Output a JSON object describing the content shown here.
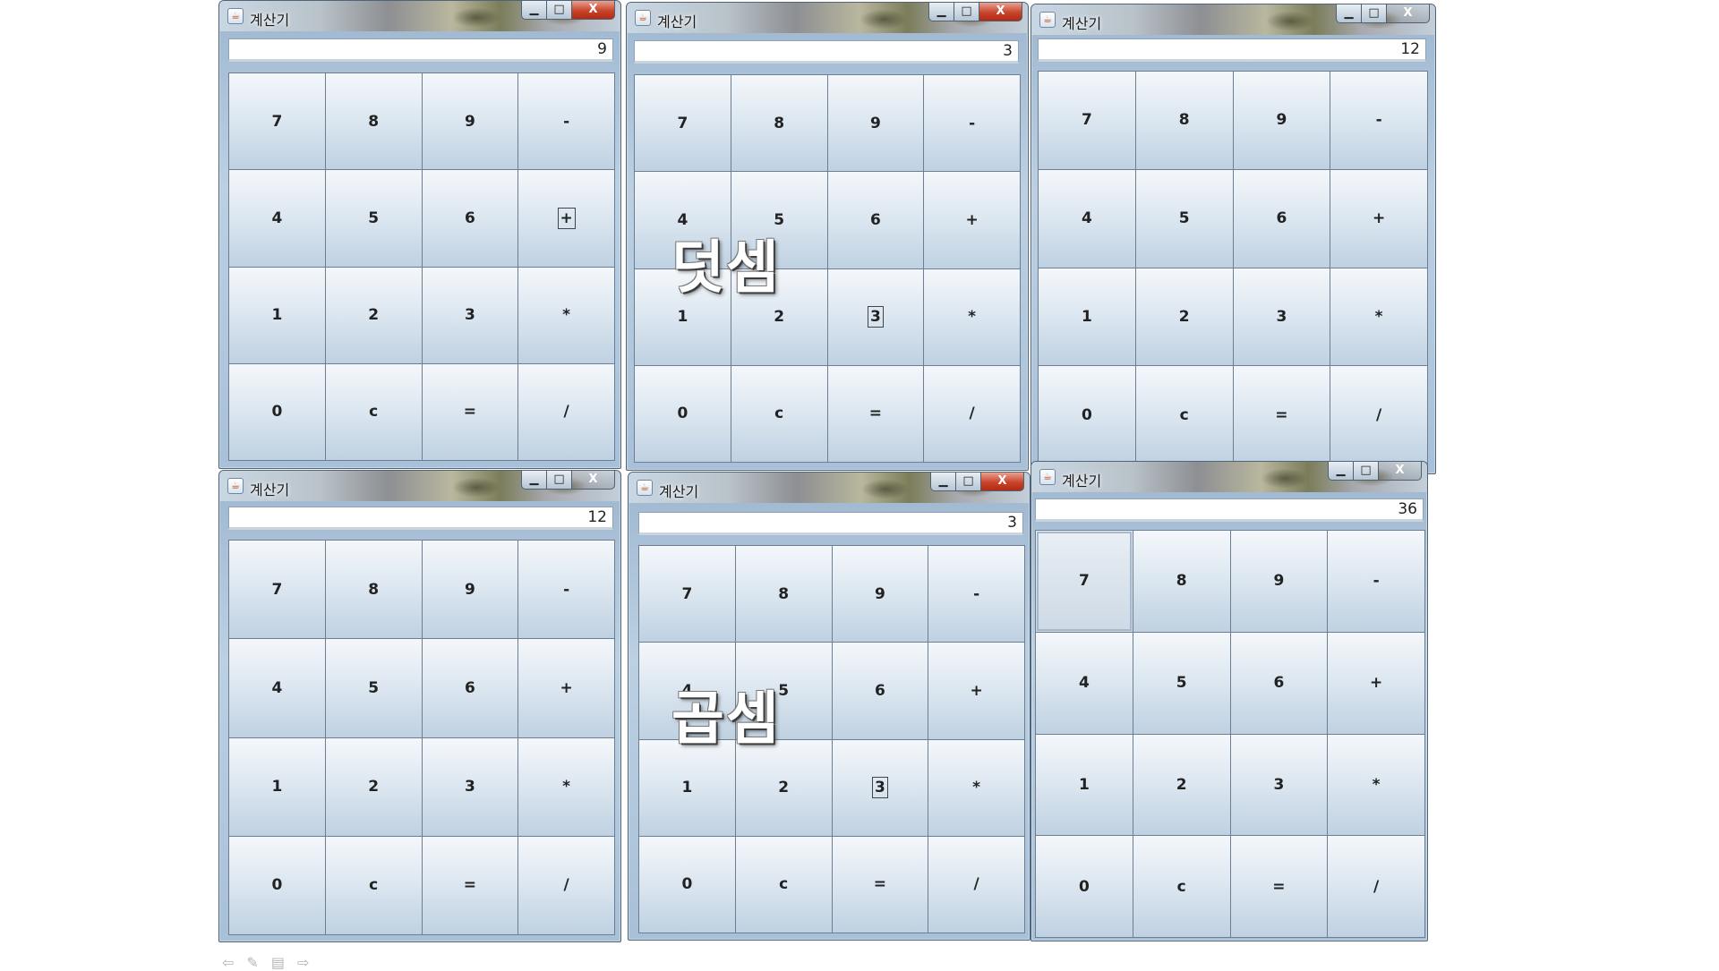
{
  "app_title": "계산기",
  "app_icon": "java-cup-icon",
  "window_controls": {
    "minimize": "▁",
    "maximize": "□",
    "close": "X"
  },
  "keypad": [
    "7",
    "8",
    "9",
    "-",
    "4",
    "5",
    "6",
    "+",
    "1",
    "2",
    "3",
    "*",
    "0",
    "c",
    "=",
    "/"
  ],
  "windows": [
    {
      "display": "9"
    },
    {
      "display": "3"
    },
    {
      "display": "12"
    },
    {
      "display": "12"
    },
    {
      "display": "3"
    },
    {
      "display": "36"
    }
  ],
  "labels": {
    "addition": "덧셈",
    "multiplication": "곱셈"
  },
  "colors": {
    "close_button_red": "#c8442a",
    "key_gradient_top": "#f4f7fa",
    "key_gradient_bottom": "#bfd1e2"
  }
}
